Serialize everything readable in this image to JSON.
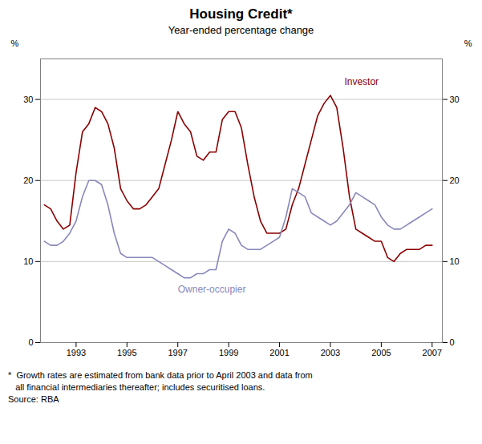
{
  "chart_data": {
    "type": "line",
    "title": "Housing Credit*",
    "subtitle": "Year-ended percentage change",
    "ylabel": "%",
    "y2label": "%",
    "footnotes": [
      "*  Growth rates are estimated from bank data prior to April 2003 and data from",
      "   all financial intermediaries thereafter; includes securitised loans.",
      "Source: RBA"
    ],
    "xlim": [
      1991.6,
      2007.4
    ],
    "xticks": [
      1993,
      1995,
      1997,
      1999,
      2001,
      2003,
      2005,
      2007
    ],
    "ylim": [
      0,
      35
    ],
    "yticks": [
      0,
      10,
      20,
      30
    ],
    "y2lim": [
      0,
      35
    ],
    "y2ticks": [
      0,
      10,
      20,
      30
    ],
    "grid": true,
    "x": [
      1991.75,
      1992.0,
      1992.25,
      1992.5,
      1992.75,
      1993.0,
      1993.25,
      1993.5,
      1993.75,
      1994.0,
      1994.25,
      1994.5,
      1994.75,
      1995.0,
      1995.25,
      1995.5,
      1995.75,
      1996.0,
      1996.25,
      1996.5,
      1996.75,
      1997.0,
      1997.25,
      1997.5,
      1997.75,
      1998.0,
      1998.25,
      1998.5,
      1998.75,
      1999.0,
      1999.25,
      1999.5,
      1999.75,
      2000.0,
      2000.25,
      2000.5,
      2000.75,
      2001.0,
      2001.25,
      2001.5,
      2001.75,
      2002.0,
      2002.25,
      2002.5,
      2002.75,
      2003.0,
      2003.25,
      2003.5,
      2003.75,
      2004.0,
      2004.25,
      2004.5,
      2004.75,
      2005.0,
      2005.25,
      2005.5,
      2005.75,
      2006.0,
      2006.25,
      2006.5,
      2006.75,
      2007.0
    ],
    "series": [
      {
        "name": "Investor",
        "color": "#8B0000",
        "values": [
          17.0,
          16.5,
          15.0,
          14.0,
          14.5,
          21.0,
          26.0,
          27.0,
          29.0,
          28.5,
          27.0,
          24.0,
          19.0,
          17.5,
          16.5,
          16.5,
          17.0,
          18.0,
          19.0,
          22.0,
          25.0,
          28.5,
          27.0,
          26.0,
          23.0,
          22.5,
          23.5,
          23.5,
          27.5,
          28.5,
          28.5,
          26.5,
          22.0,
          18.0,
          15.0,
          13.5,
          13.5,
          13.5,
          14.0,
          17.0,
          19.0,
          22.0,
          25.0,
          28.0,
          29.5,
          30.5,
          29.0,
          24.0,
          18.0,
          14.0,
          13.5,
          13.0,
          12.5,
          12.5,
          10.5,
          10.0,
          11.0,
          11.5,
          11.5,
          11.5,
          12.0,
          12.0
        ]
      },
      {
        "name": "Owner-occupier",
        "color": "#8888BB",
        "values": [
          12.5,
          12.0,
          12.0,
          12.5,
          13.5,
          15.0,
          18.0,
          20.0,
          20.0,
          19.5,
          17.0,
          13.5,
          11.0,
          10.5,
          10.5,
          10.5,
          10.5,
          10.5,
          10.0,
          9.5,
          9.0,
          8.5,
          8.0,
          8.0,
          8.5,
          8.5,
          9.0,
          9.0,
          12.5,
          14.0,
          13.5,
          12.0,
          11.5,
          11.5,
          11.5,
          12.0,
          12.5,
          13.0,
          15.5,
          19.0,
          18.5,
          18.0,
          16.0,
          15.5,
          15.0,
          14.5,
          15.0,
          16.0,
          17.0,
          18.5,
          18.0,
          17.5,
          17.0,
          15.5,
          14.5,
          14.0,
          14.0,
          14.5,
          15.0,
          15.5,
          16.0,
          16.5
        ]
      }
    ],
    "annotations": [
      {
        "text": "Investor",
        "x": 2003.55,
        "y": 31.8,
        "color": "#8B0000"
      },
      {
        "text": "Owner-occupier",
        "x": 1997.0,
        "y": 6.2,
        "color": "#8888BB"
      }
    ]
  }
}
